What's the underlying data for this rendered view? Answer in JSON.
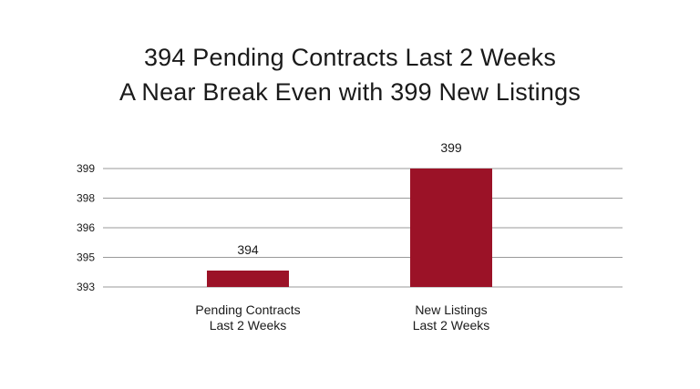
{
  "chart_data": {
    "type": "bar",
    "title": [
      "394 Pending Contracts Last 2 Weeks",
      "A Near Break Even with 399 New Listings"
    ],
    "categories": [
      [
        "Pending Contracts",
        "Last 2 Weeks"
      ],
      [
        "New Listings",
        "Last 2 Weeks"
      ]
    ],
    "values": [
      394,
      399
    ],
    "data_labels": [
      "394",
      "399"
    ],
    "y_tick_labels": [
      "399",
      "398",
      "396",
      "395",
      "393"
    ],
    "grid": true,
    "legend": "none",
    "colors": {
      "bar": "#9b1227",
      "grid": "#9a9a9a",
      "text": "#1a1a1a"
    }
  }
}
